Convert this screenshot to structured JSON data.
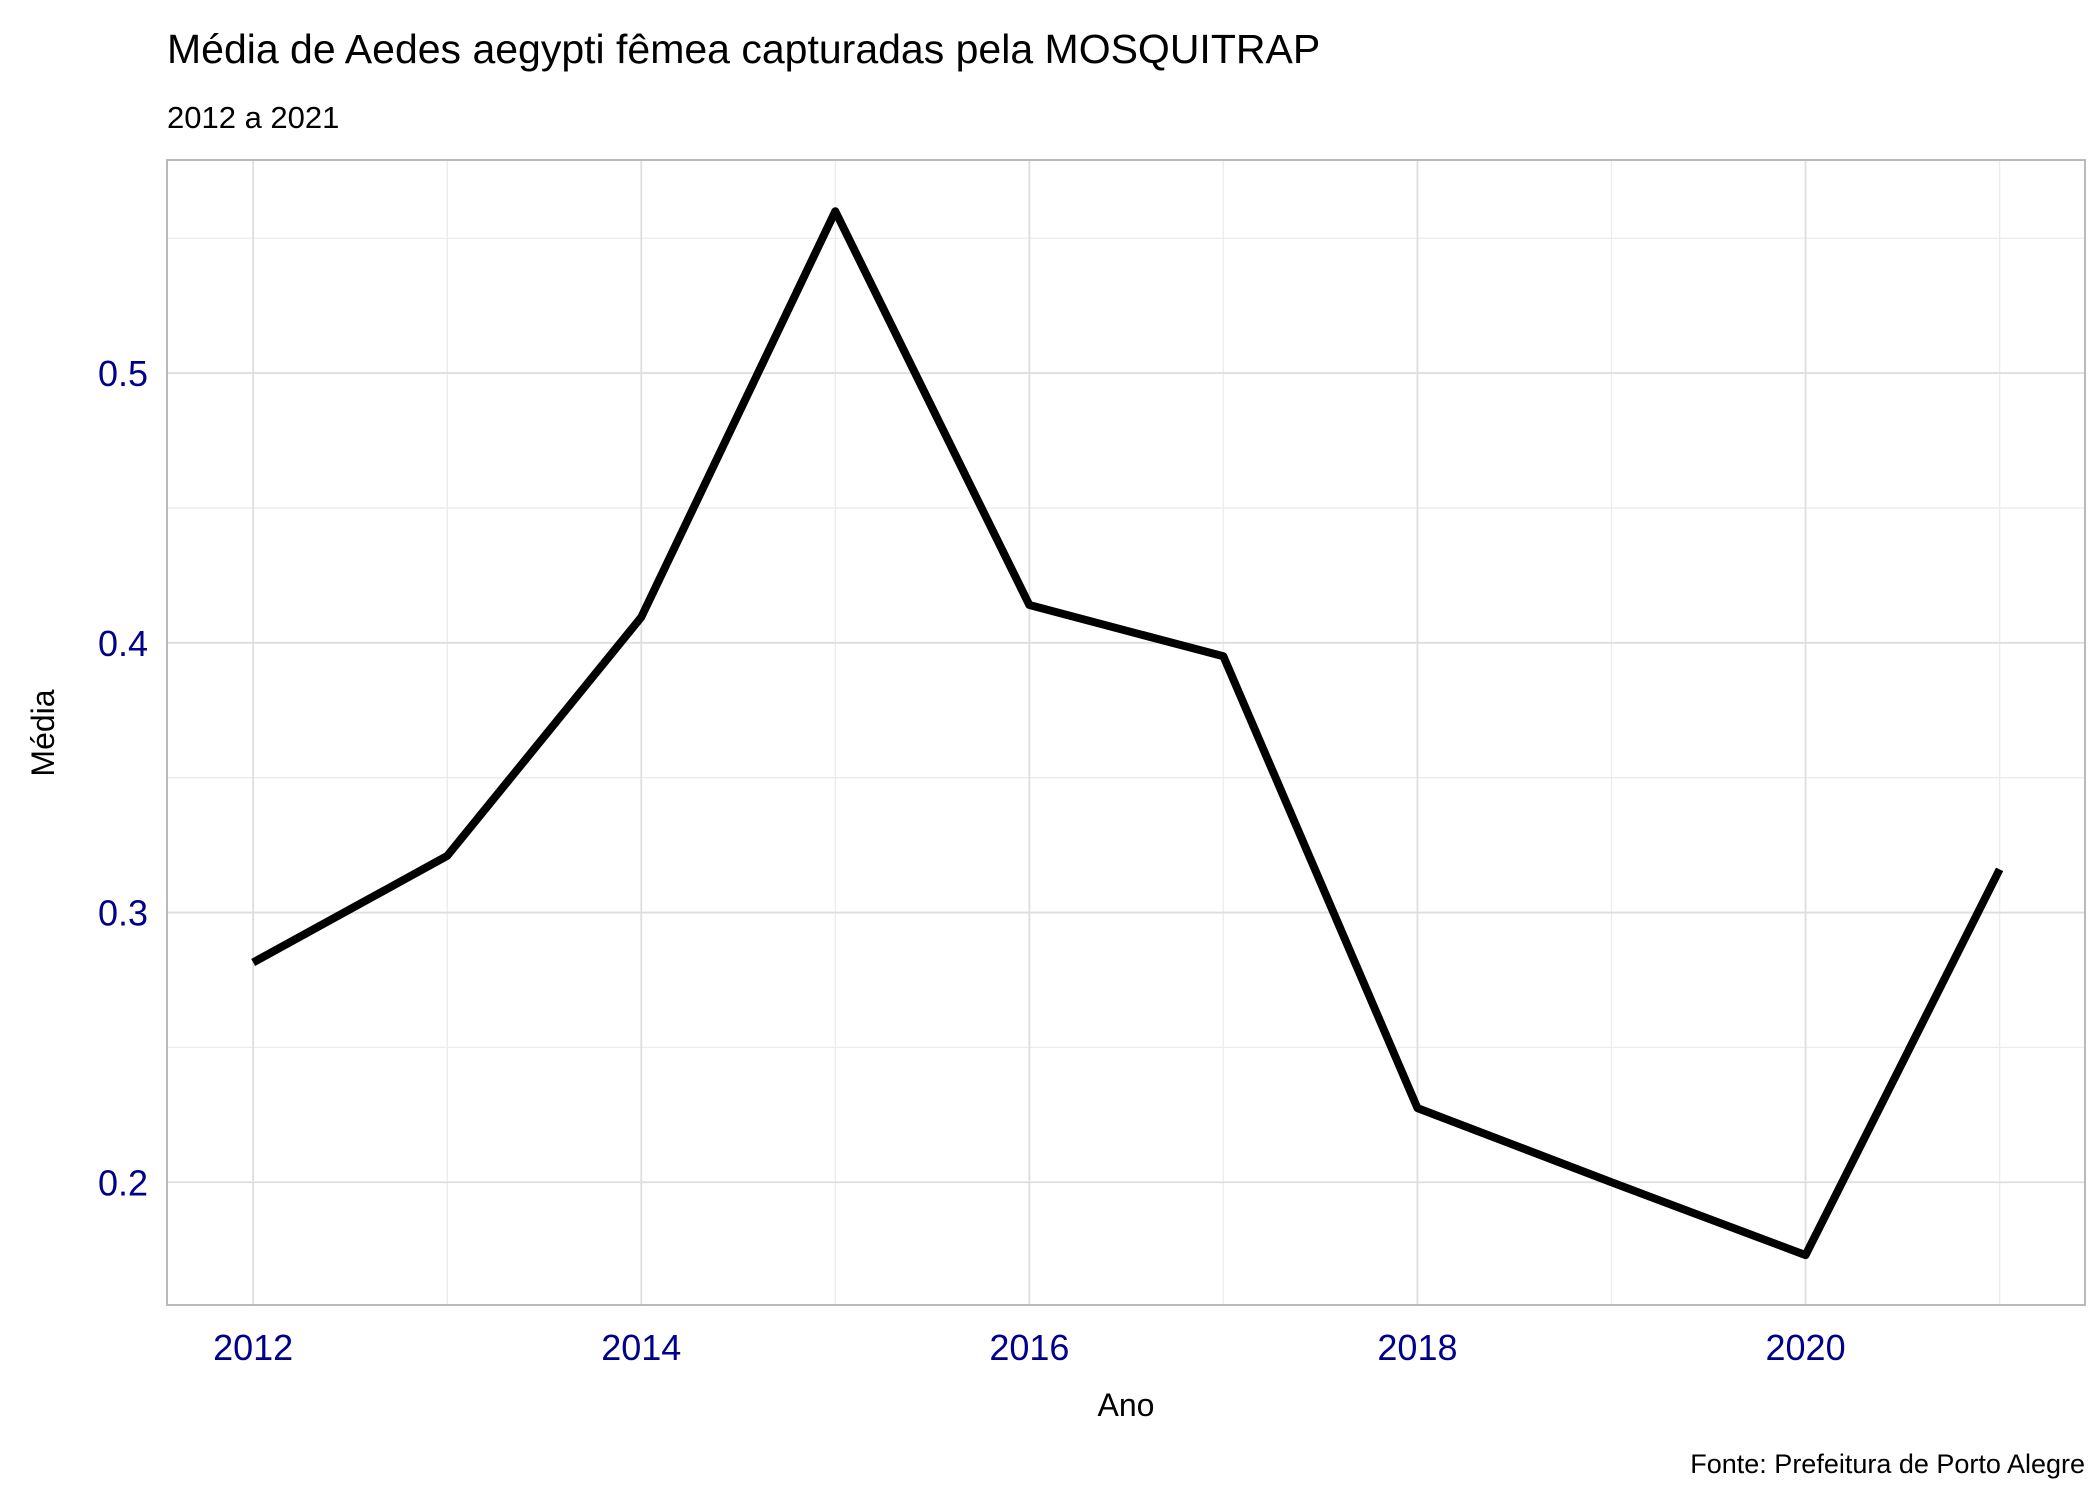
{
  "chart_data": {
    "type": "line",
    "title": "Média de Aedes aegypti fêmea capturadas pela MOSQUITRAP",
    "subtitle": "2012 a 2021",
    "x_label": "Ano",
    "y_label": "Média",
    "caption": "Fonte: Prefeitura de Porto Alegre",
    "x": [
      2012,
      2013,
      2014,
      2015,
      2016,
      2017,
      2018,
      2019,
      2020,
      2021
    ],
    "series": [
      {
        "name": "Média",
        "color": "#000000",
        "values": [
          0.2815,
          0.321,
          0.4095,
          0.56,
          0.414,
          0.395,
          0.2275,
          0.2,
          0.173,
          0.316
        ]
      }
    ],
    "xlim": [
      2011.556,
      2021.44
    ],
    "xticks": [
      2012,
      2014,
      2016,
      2018,
      2020
    ],
    "ylim": [
      0.1545,
      0.579
    ],
    "yticks": [
      0.2,
      0.3,
      0.4,
      0.5
    ],
    "grid": true,
    "tick_label_color": "#00008b"
  }
}
